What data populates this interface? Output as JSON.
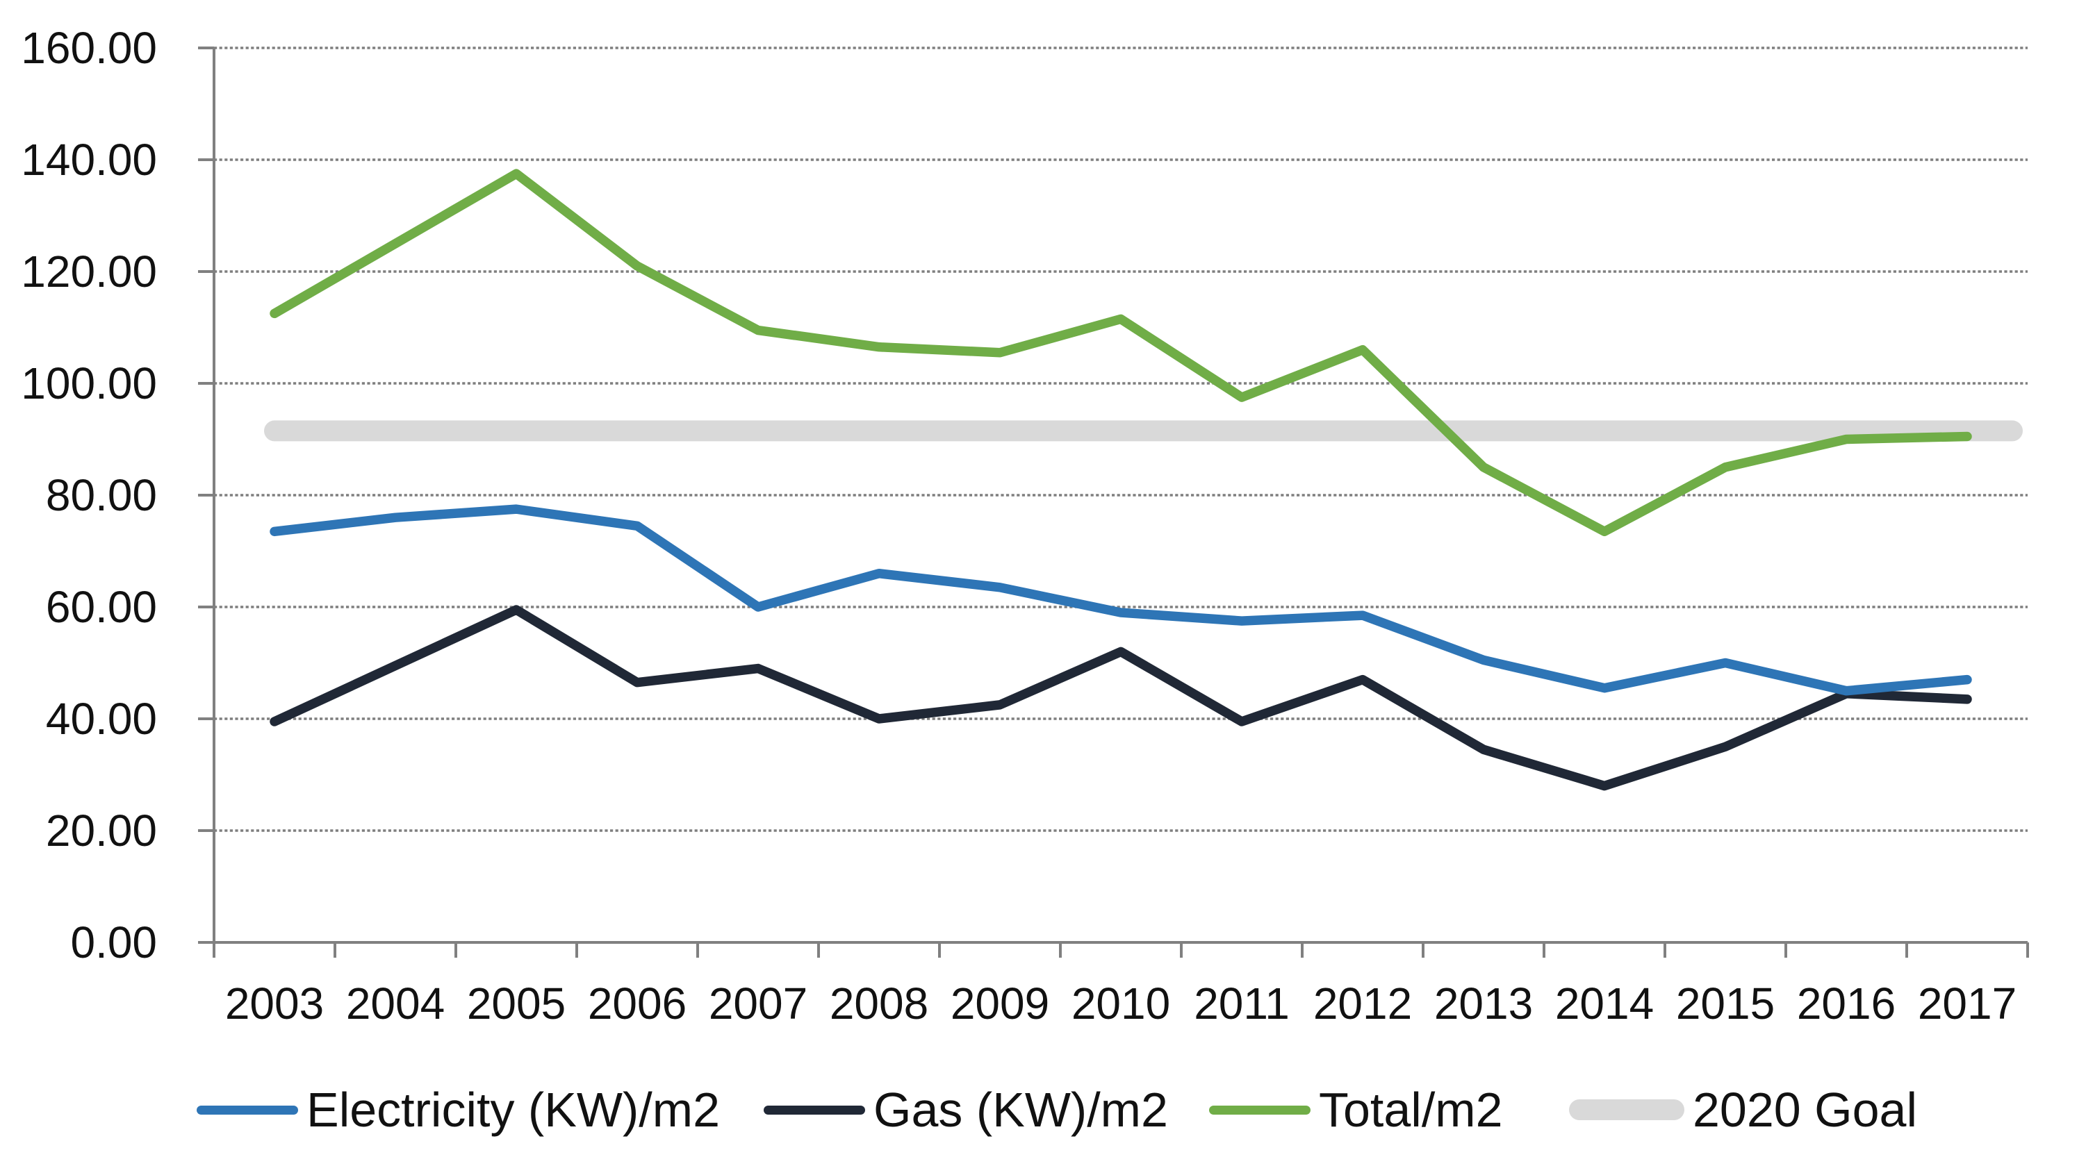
{
  "chart_data": {
    "type": "line",
    "title": "",
    "xlabel": "",
    "ylabel": "",
    "categories": [
      "2003",
      "2004",
      "2005",
      "2006",
      "2007",
      "2008",
      "2009",
      "2010",
      "2011",
      "2012",
      "2013",
      "2014",
      "2015",
      "2016",
      "2017"
    ],
    "series": [
      {
        "name": "Electricity (KW)/m2",
        "color": "#2E75B6",
        "values": [
          73.5,
          76,
          77.5,
          74.5,
          60,
          66,
          63.5,
          59,
          57.5,
          58.5,
          50.5,
          45.5,
          50,
          45,
          47
        ]
      },
      {
        "name": "Gas (KW)/m2",
        "color": "#202836",
        "values": [
          39.5,
          49.5,
          59.5,
          46.5,
          49,
          40,
          42.5,
          52,
          39.5,
          47,
          34.5,
          28,
          35,
          44.5,
          43.5
        ]
      },
      {
        "name": "Total/m2",
        "color": "#70AD47",
        "values": [
          112.5,
          125,
          137.5,
          121,
          109.5,
          106.5,
          105.5,
          111.5,
          97.5,
          106,
          85,
          73.5,
          85,
          90,
          90.5
        ]
      }
    ],
    "goal_line": {
      "name": "2020 Goal",
      "color": "#D9D9D9",
      "value": 91.5
    },
    "y_axis": {
      "min": 0,
      "max": 160,
      "step": 20,
      "tick_labels": [
        "160.00",
        "140.00",
        "120.00",
        "100.00",
        "80.00",
        "60.00",
        "40.00",
        "20.00",
        "0.00"
      ]
    },
    "grid": "horizontal-dotted",
    "gridline_color": "#7F7F7F",
    "axis_color": "#808080",
    "legend_position": "bottom"
  }
}
